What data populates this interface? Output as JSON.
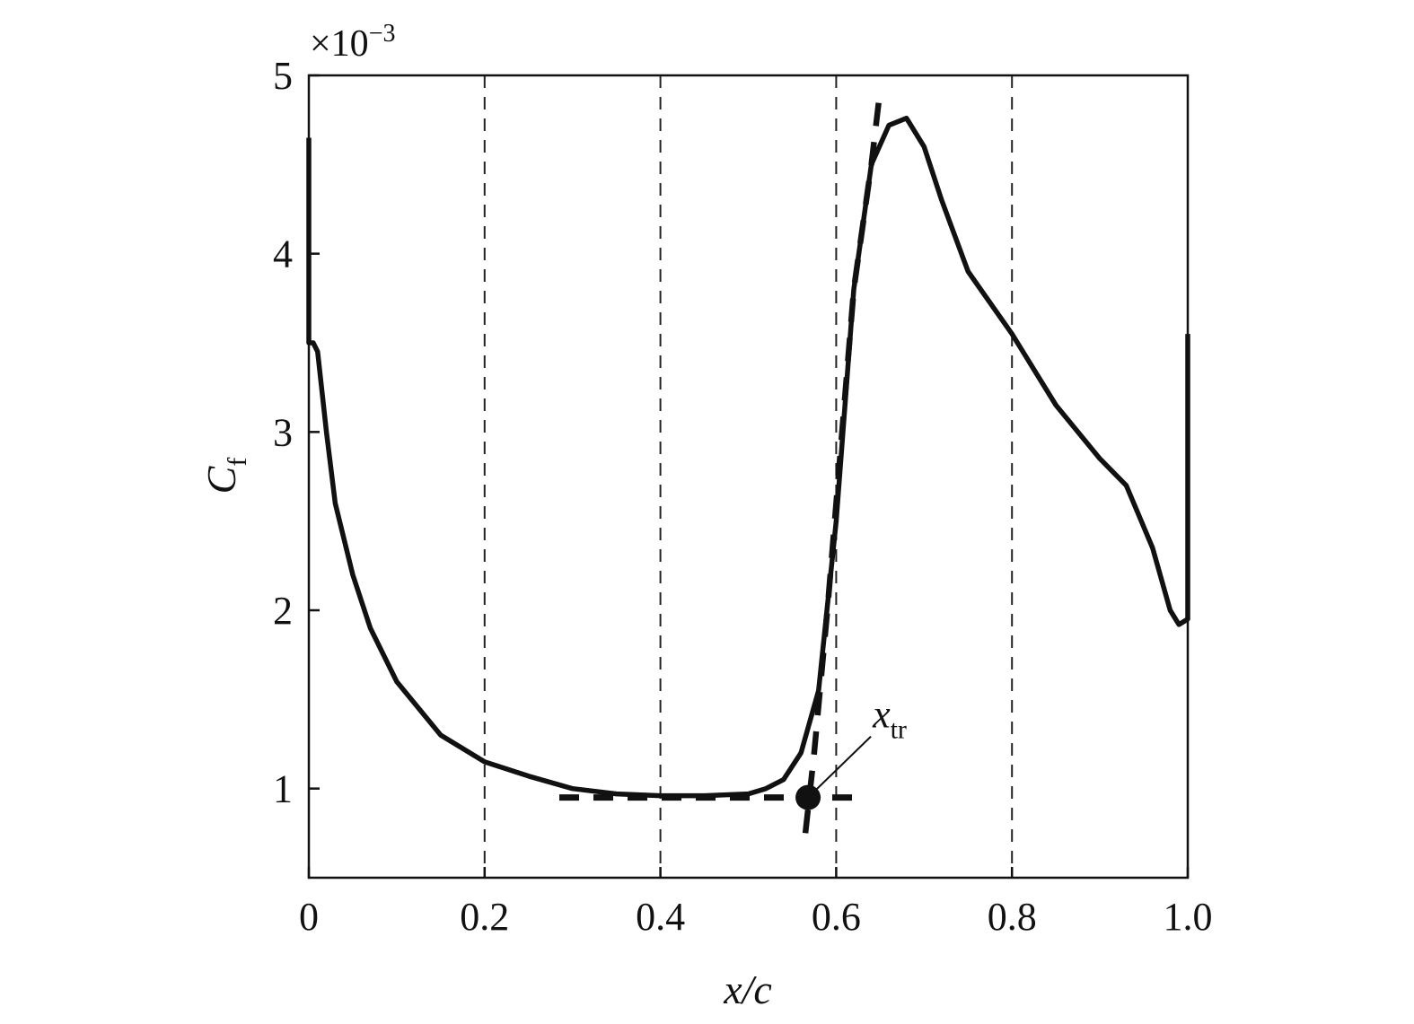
{
  "chart_data": {
    "type": "line",
    "xlabel": "x/c",
    "ylabel": "C",
    "ylabel_subscript": "f",
    "y_multiplier_label": "×10",
    "y_multiplier_exponent": "−3",
    "xlim": [
      0,
      1.0
    ],
    "ylim": [
      0.5,
      5
    ],
    "x_ticks": [
      0,
      0.2,
      0.4,
      0.6,
      0.8,
      1.0
    ],
    "x_tick_labels": [
      "0",
      "0.2",
      "0.4",
      "0.6",
      "0.8",
      "1.0"
    ],
    "y_ticks": [
      1,
      2,
      3,
      4,
      5
    ],
    "y_tick_labels": [
      "1",
      "2",
      "3",
      "4",
      "5"
    ],
    "grid": "vertical dashed at x ticks",
    "legend": "none",
    "series": [
      {
        "style": "solid",
        "x": [
          0.0,
          0.0,
          0.0,
          0.005,
          0.01,
          0.02,
          0.03,
          0.05,
          0.07,
          0.1,
          0.15,
          0.2,
          0.25,
          0.3,
          0.35,
          0.4,
          0.45,
          0.5,
          0.52,
          0.54,
          0.56,
          0.58,
          0.6,
          0.62,
          0.64,
          0.66,
          0.68,
          0.7,
          0.72,
          0.75,
          0.8,
          0.85,
          0.9,
          0.93,
          0.96,
          0.98,
          0.99,
          1.0,
          1.0
        ],
        "y": [
          4.65,
          3.5,
          3.5,
          3.5,
          3.45,
          3.0,
          2.6,
          2.2,
          1.9,
          1.6,
          1.3,
          1.15,
          1.07,
          1.0,
          0.97,
          0.96,
          0.96,
          0.97,
          1.0,
          1.05,
          1.2,
          1.55,
          2.5,
          3.8,
          4.5,
          4.72,
          4.76,
          4.6,
          4.3,
          3.9,
          3.55,
          3.15,
          2.85,
          2.7,
          2.35,
          2.0,
          1.92,
          1.95,
          3.55
        ]
      },
      {
        "style": "dashed-horizontal",
        "x": [
          0.285,
          0.62
        ],
        "y": [
          0.95,
          0.95
        ]
      },
      {
        "style": "dashed-steep",
        "x": [
          0.565,
          0.575,
          0.59,
          0.62,
          0.64,
          0.65
        ],
        "y": [
          0.75,
          1.2,
          2.0,
          3.8,
          4.5,
          4.92
        ]
      }
    ],
    "annotations": [
      {
        "text": "x",
        "subscript": "tr",
        "point_x": 0.568,
        "point_y": 0.95
      }
    ]
  }
}
